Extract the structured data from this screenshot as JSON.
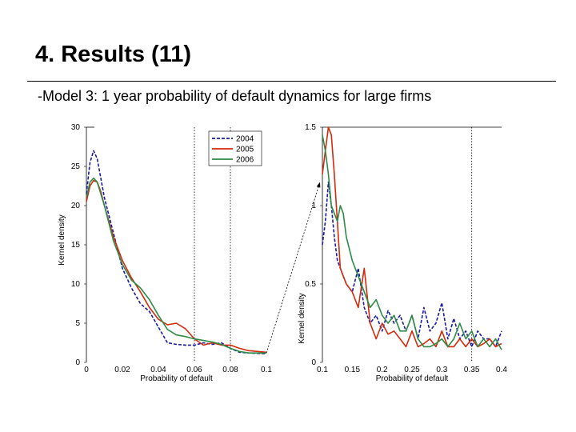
{
  "slide": {
    "title": "4. Results (11)",
    "subtitle": "-Model 3: 1 year probability of default dynamics for large firms"
  },
  "colors": {
    "2004": "#1a1aa6",
    "2005": "#d42a0c",
    "2006": "#2e8b45",
    "text": "#000000"
  },
  "chart_data": [
    {
      "type": "line",
      "title": "",
      "xlabel": "Probability of default",
      "ylabel": "Kernel density",
      "xlim": [
        0,
        0.1
      ],
      "ylim": [
        0,
        30
      ],
      "x_ticks": [
        "0",
        "0.02",
        "0.04",
        "0.06",
        "0.08",
        "0.1"
      ],
      "y_ticks": [
        "0",
        "5",
        "10",
        "15",
        "20",
        "25",
        "30"
      ],
      "vertical_reference_lines": [
        0.06,
        0.08
      ],
      "legend": {
        "position": "top-right",
        "entries": [
          "2004",
          "2005",
          "2006"
        ]
      },
      "series": [
        {
          "name": "2004",
          "style": "dashed",
          "x": [
            0,
            0.002,
            0.004,
            0.006,
            0.008,
            0.01,
            0.015,
            0.02,
            0.025,
            0.03,
            0.035,
            0.04,
            0.045,
            0.05,
            0.055,
            0.06,
            0.065,
            0.07,
            0.075,
            0.08,
            0.085,
            0.09,
            0.1
          ],
          "y": [
            21.5,
            25.5,
            27,
            26,
            23.5,
            21,
            16.5,
            12,
            9.5,
            7.5,
            6.5,
            4.5,
            2.5,
            2.3,
            2.2,
            2.2,
            2.5,
            2.3,
            2.5,
            1.8,
            1.3,
            1.2,
            1.1
          ]
        },
        {
          "name": "2005",
          "style": "solid",
          "x": [
            0,
            0.002,
            0.004,
            0.006,
            0.008,
            0.01,
            0.015,
            0.02,
            0.025,
            0.03,
            0.035,
            0.04,
            0.045,
            0.05,
            0.055,
            0.06,
            0.065,
            0.07,
            0.075,
            0.08,
            0.085,
            0.09,
            0.1
          ],
          "y": [
            20.5,
            22.5,
            23.2,
            23,
            21.8,
            20,
            16,
            13,
            10.8,
            9,
            7,
            5.5,
            4.8,
            5,
            4.3,
            3,
            2.2,
            2.5,
            2.2,
            2.2,
            1.8,
            1.5,
            1.3
          ]
        },
        {
          "name": "2006",
          "style": "solid",
          "x": [
            0,
            0.002,
            0.004,
            0.006,
            0.008,
            0.01,
            0.015,
            0.02,
            0.025,
            0.03,
            0.035,
            0.04,
            0.045,
            0.05,
            0.055,
            0.06,
            0.065,
            0.07,
            0.075,
            0.08,
            0.085,
            0.09,
            0.1
          ],
          "y": [
            21,
            23,
            23.5,
            23,
            21.5,
            20,
            15.5,
            12.5,
            10.5,
            9.5,
            8,
            6,
            4.2,
            3.5,
            3.3,
            3,
            2.8,
            2.6,
            2.3,
            1.8,
            1.4,
            1.2,
            1.2
          ]
        }
      ]
    },
    {
      "type": "line",
      "title": "",
      "xlabel": "Probability of default",
      "ylabel": "Kernel density",
      "xlim": [
        0.1,
        0.4
      ],
      "ylim": [
        0,
        1.5
      ],
      "x_ticks": [
        "0.1",
        "0.15",
        "0.2",
        "0.25",
        "0.3",
        "0.35",
        "0.4"
      ],
      "y_ticks": [
        "0",
        "0.5",
        "1",
        "1.5"
      ],
      "vertical_reference_lines": [
        0.35
      ],
      "series": [
        {
          "name": "2004",
          "style": "dashed",
          "x": [
            0.1,
            0.105,
            0.11,
            0.115,
            0.12,
            0.125,
            0.13,
            0.135,
            0.14,
            0.15,
            0.16,
            0.17,
            0.18,
            0.19,
            0.2,
            0.21,
            0.22,
            0.23,
            0.24,
            0.25,
            0.26,
            0.27,
            0.28,
            0.29,
            0.3,
            0.31,
            0.32,
            0.33,
            0.34,
            0.35,
            0.36,
            0.37,
            0.38,
            0.39,
            0.4
          ],
          "y": [
            0.75,
            0.9,
            1.15,
            1.0,
            0.8,
            0.65,
            0.6,
            0.55,
            0.5,
            0.45,
            0.6,
            0.35,
            0.25,
            0.3,
            0.2,
            0.33,
            0.25,
            0.3,
            0.2,
            0.3,
            0.15,
            0.35,
            0.2,
            0.25,
            0.38,
            0.15,
            0.28,
            0.15,
            0.2,
            0.1,
            0.2,
            0.15,
            0.15,
            0.1,
            0.2
          ]
        },
        {
          "name": "2005",
          "style": "solid",
          "x": [
            0.1,
            0.105,
            0.11,
            0.115,
            0.12,
            0.125,
            0.13,
            0.135,
            0.14,
            0.15,
            0.16,
            0.17,
            0.18,
            0.19,
            0.2,
            0.21,
            0.22,
            0.23,
            0.24,
            0.25,
            0.26,
            0.27,
            0.28,
            0.29,
            0.3,
            0.31,
            0.32,
            0.33,
            0.34,
            0.35,
            0.36,
            0.37,
            0.38,
            0.39,
            0.4
          ],
          "y": [
            1.2,
            1.35,
            1.5,
            1.45,
            1.2,
            0.9,
            0.6,
            0.55,
            0.5,
            0.45,
            0.35,
            0.6,
            0.25,
            0.15,
            0.25,
            0.18,
            0.2,
            0.15,
            0.1,
            0.2,
            0.1,
            0.12,
            0.15,
            0.1,
            0.2,
            0.1,
            0.1,
            0.15,
            0.1,
            0.15,
            0.1,
            0.12,
            0.15,
            0.1,
            0.12
          ]
        },
        {
          "name": "2006",
          "style": "solid",
          "x": [
            0.1,
            0.105,
            0.11,
            0.115,
            0.12,
            0.125,
            0.13,
            0.135,
            0.14,
            0.15,
            0.16,
            0.17,
            0.18,
            0.19,
            0.2,
            0.21,
            0.22,
            0.23,
            0.24,
            0.25,
            0.26,
            0.27,
            0.28,
            0.29,
            0.3,
            0.31,
            0.32,
            0.33,
            0.34,
            0.35,
            0.36,
            0.37,
            0.38,
            0.39,
            0.4
          ],
          "y": [
            1.45,
            1.35,
            1.2,
            1.0,
            0.95,
            0.9,
            1.0,
            0.95,
            0.8,
            0.65,
            0.55,
            0.45,
            0.35,
            0.4,
            0.3,
            0.25,
            0.3,
            0.2,
            0.2,
            0.3,
            0.15,
            0.1,
            0.1,
            0.12,
            0.15,
            0.1,
            0.15,
            0.25,
            0.15,
            0.2,
            0.1,
            0.15,
            0.1,
            0.15,
            0.08
          ]
        }
      ]
    }
  ]
}
